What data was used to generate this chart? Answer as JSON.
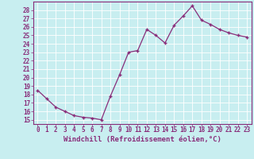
{
  "x": [
    0,
    1,
    2,
    3,
    4,
    5,
    6,
    7,
    8,
    9,
    10,
    11,
    12,
    13,
    14,
    15,
    16,
    17,
    18,
    19,
    20,
    21,
    22,
    23
  ],
  "y": [
    18.5,
    17.5,
    16.5,
    16.0,
    15.5,
    15.3,
    15.2,
    15.0,
    17.8,
    20.3,
    23.0,
    23.2,
    25.7,
    25.0,
    24.1,
    26.2,
    27.3,
    28.5,
    26.8,
    26.3,
    25.7,
    25.3,
    25.0,
    24.8
  ],
  "line_color": "#892d7a",
  "marker": "+",
  "bg_color": "#c8eef0",
  "grid_color": "#b0dde0",
  "xlabel": "Windchill (Refroidissement éolien,°C)",
  "xlabel_color": "#892d7a",
  "tick_color": "#892d7a",
  "spine_color": "#892d7a",
  "ylim": [
    14.5,
    29
  ],
  "yticks": [
    15,
    16,
    17,
    18,
    19,
    20,
    21,
    22,
    23,
    24,
    25,
    26,
    27,
    28
  ],
  "xlim": [
    -0.5,
    23.5
  ],
  "xticks": [
    0,
    1,
    2,
    3,
    4,
    5,
    6,
    7,
    8,
    9,
    10,
    11,
    12,
    13,
    14,
    15,
    16,
    17,
    18,
    19,
    20,
    21,
    22,
    23
  ],
  "font_size": 5.5,
  "label_font_size": 6.5
}
